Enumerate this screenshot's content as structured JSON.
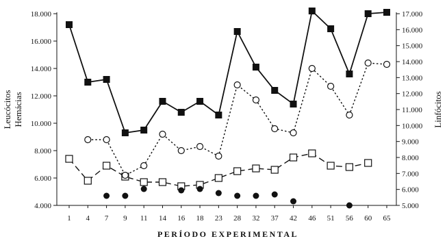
{
  "chart_data": {
    "type": "line",
    "xlabel": "PERÍODO EXPERIMENTAL",
    "ylabel_left_line1": "Leucócitos",
    "ylabel_left_line2": "Hemácias",
    "ylabel_right": "Linfócitos",
    "categories": [
      "1",
      "4",
      "7",
      "9",
      "11",
      "14",
      "16",
      "18",
      "23",
      "28",
      "32",
      "37",
      "42",
      "46",
      "51",
      "56",
      "60",
      "65"
    ],
    "left_axis": {
      "range": [
        4000,
        18000
      ],
      "ticks": [
        4000,
        6000,
        8000,
        10000,
        12000,
        14000,
        16000,
        18000
      ],
      "tick_labels": [
        "4.000",
        "6.000",
        "8.000",
        "10.000",
        "12.000",
        "14.000",
        "16.000",
        "18.000"
      ]
    },
    "right_axis": {
      "range": [
        5000,
        17000
      ],
      "ticks": [
        5000,
        6000,
        7000,
        8000,
        9000,
        10000,
        11000,
        12000,
        13000,
        14000,
        15000,
        16000,
        17000
      ],
      "tick_labels": [
        "5.000",
        "6.000",
        "7.000",
        "8.000",
        "9.000",
        "10.000",
        "11.000",
        "12.000",
        "13.000",
        "14.000",
        "15.000",
        "16.000",
        "17.000"
      ]
    },
    "series": [
      {
        "axis": "left",
        "line": "solid",
        "marker": "filled-square",
        "values": [
          17200,
          13000,
          13200,
          9300,
          9500,
          11600,
          10800,
          11600,
          10600,
          16700,
          14100,
          12400,
          11400,
          18200,
          16900,
          13600,
          18000,
          18100
        ]
      },
      {
        "axis": "left",
        "line": "dotted",
        "marker": "open-circle",
        "values": [
          null,
          8800,
          8800,
          6200,
          6900,
          9200,
          8000,
          8300,
          7600,
          12800,
          11700,
          9600,
          9300,
          14000,
          12700,
          10600,
          14400,
          14300
        ]
      },
      {
        "axis": "left",
        "line": "dashed",
        "marker": "open-square",
        "values": [
          7400,
          5800,
          6900,
          6100,
          5700,
          5700,
          5400,
          5500,
          6000,
          6500,
          6700,
          6600,
          7500,
          7800,
          6900,
          6800,
          7100,
          null
        ]
      },
      {
        "axis": "left",
        "line": "none",
        "marker": "filled-circle",
        "values": [
          null,
          null,
          4700,
          4700,
          5200,
          null,
          5100,
          5200,
          4900,
          4700,
          4700,
          4800,
          4300,
          null,
          null,
          4000,
          null,
          null
        ]
      }
    ]
  }
}
